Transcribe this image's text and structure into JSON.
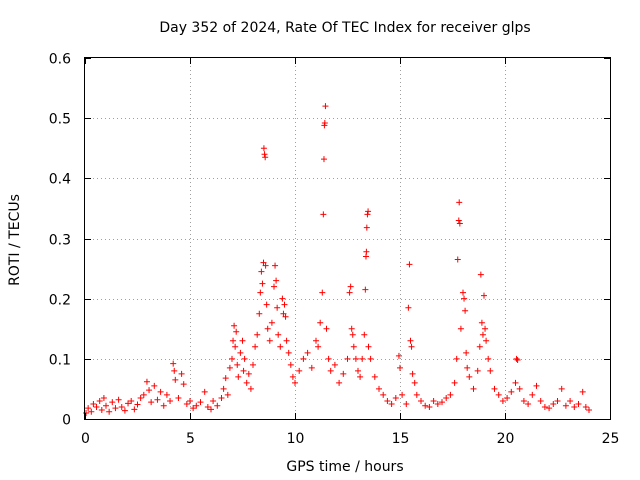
{
  "chart_data": {
    "type": "scatter",
    "title": "Day 352 of 2024, Rate Of TEC Index for receiver glps",
    "xlabel": "GPS time / hours",
    "ylabel": "ROTI / TECUs",
    "xlim": [
      0,
      25
    ],
    "ylim": [
      0,
      0.6
    ],
    "xticks": [
      0,
      5,
      10,
      15,
      20,
      25
    ],
    "yticks": [
      0,
      0.1,
      0.2,
      0.3,
      0.4,
      0.5,
      0.6
    ],
    "grid": true,
    "marker": "+",
    "color": "#ff0000",
    "series": [
      {
        "name": "ROTI",
        "points": [
          [
            0.05,
            0.01
          ],
          [
            0.15,
            0.018
          ],
          [
            0.3,
            0.012
          ],
          [
            0.4,
            0.025
          ],
          [
            0.55,
            0.02
          ],
          [
            0.7,
            0.03
          ],
          [
            0.8,
            0.015
          ],
          [
            0.9,
            0.035
          ],
          [
            1.0,
            0.022
          ],
          [
            1.15,
            0.012
          ],
          [
            1.3,
            0.028
          ],
          [
            1.45,
            0.018
          ],
          [
            1.6,
            0.032
          ],
          [
            1.75,
            0.02
          ],
          [
            1.9,
            0.014
          ],
          [
            2.05,
            0.026
          ],
          [
            2.2,
            0.03
          ],
          [
            2.35,
            0.016
          ],
          [
            2.5,
            0.024
          ],
          [
            2.65,
            0.035
          ],
          [
            2.8,
            0.04
          ],
          [
            2.95,
            0.062
          ],
          [
            3.05,
            0.048
          ],
          [
            3.15,
            0.028
          ],
          [
            3.3,
            0.055
          ],
          [
            3.45,
            0.032
          ],
          [
            3.6,
            0.045
          ],
          [
            3.75,
            0.022
          ],
          [
            3.9,
            0.04
          ],
          [
            4.05,
            0.03
          ],
          [
            4.2,
            0.092
          ],
          [
            4.25,
            0.08
          ],
          [
            4.3,
            0.065
          ],
          [
            4.45,
            0.035
          ],
          [
            4.6,
            0.075
          ],
          [
            4.7,
            0.058
          ],
          [
            4.85,
            0.025
          ],
          [
            5.0,
            0.03
          ],
          [
            5.15,
            0.018
          ],
          [
            5.3,
            0.022
          ],
          [
            5.5,
            0.028
          ],
          [
            5.7,
            0.045
          ],
          [
            5.85,
            0.02
          ],
          [
            6.0,
            0.016
          ],
          [
            6.1,
            0.03
          ],
          [
            6.3,
            0.022
          ],
          [
            6.5,
            0.035
          ],
          [
            6.6,
            0.05
          ],
          [
            6.7,
            0.068
          ],
          [
            6.8,
            0.04
          ],
          [
            6.9,
            0.085
          ],
          [
            7.0,
            0.1
          ],
          [
            7.05,
            0.13
          ],
          [
            7.1,
            0.155
          ],
          [
            7.15,
            0.12
          ],
          [
            7.2,
            0.145
          ],
          [
            7.25,
            0.09
          ],
          [
            7.3,
            0.07
          ],
          [
            7.4,
            0.11
          ],
          [
            7.5,
            0.13
          ],
          [
            7.55,
            0.08
          ],
          [
            7.6,
            0.1
          ],
          [
            7.7,
            0.06
          ],
          [
            7.8,
            0.075
          ],
          [
            7.9,
            0.05
          ],
          [
            8.0,
            0.09
          ],
          [
            8.1,
            0.12
          ],
          [
            8.2,
            0.14
          ],
          [
            8.3,
            0.175
          ],
          [
            8.35,
            0.21
          ],
          [
            8.4,
            0.245
          ],
          [
            8.45,
            0.225
          ],
          [
            8.5,
            0.26
          ],
          [
            8.52,
            0.45
          ],
          [
            8.55,
            0.44
          ],
          [
            8.58,
            0.435
          ],
          [
            8.6,
            0.255
          ],
          [
            8.65,
            0.19
          ],
          [
            8.7,
            0.15
          ],
          [
            8.8,
            0.13
          ],
          [
            8.9,
            0.16
          ],
          [
            9.0,
            0.22
          ],
          [
            9.05,
            0.255
          ],
          [
            9.1,
            0.23
          ],
          [
            9.15,
            0.185
          ],
          [
            9.2,
            0.14
          ],
          [
            9.3,
            0.12
          ],
          [
            9.4,
            0.2
          ],
          [
            9.45,
            0.175
          ],
          [
            9.5,
            0.19
          ],
          [
            9.55,
            0.17
          ],
          [
            9.6,
            0.13
          ],
          [
            9.7,
            0.11
          ],
          [
            9.8,
            0.09
          ],
          [
            9.9,
            0.07
          ],
          [
            10.0,
            0.06
          ],
          [
            10.2,
            0.08
          ],
          [
            10.4,
            0.1
          ],
          [
            10.6,
            0.11
          ],
          [
            10.8,
            0.085
          ],
          [
            11.0,
            0.13
          ],
          [
            11.1,
            0.12
          ],
          [
            11.2,
            0.16
          ],
          [
            11.3,
            0.21
          ],
          [
            11.35,
            0.34
          ],
          [
            11.38,
            0.432
          ],
          [
            11.4,
            0.488
          ],
          [
            11.42,
            0.492
          ],
          [
            11.45,
            0.52
          ],
          [
            11.5,
            0.15
          ],
          [
            11.6,
            0.1
          ],
          [
            11.7,
            0.08
          ],
          [
            11.9,
            0.09
          ],
          [
            12.1,
            0.06
          ],
          [
            12.3,
            0.075
          ],
          [
            12.5,
            0.1
          ],
          [
            12.6,
            0.21
          ],
          [
            12.65,
            0.22
          ],
          [
            12.7,
            0.15
          ],
          [
            12.75,
            0.14
          ],
          [
            12.8,
            0.12
          ],
          [
            12.9,
            0.1
          ],
          [
            13.0,
            0.08
          ],
          [
            13.1,
            0.07
          ],
          [
            13.2,
            0.1
          ],
          [
            13.3,
            0.14
          ],
          [
            13.35,
            0.215
          ],
          [
            13.38,
            0.27
          ],
          [
            13.4,
            0.278
          ],
          [
            13.42,
            0.318
          ],
          [
            13.45,
            0.34
          ],
          [
            13.48,
            0.345
          ],
          [
            13.5,
            0.12
          ],
          [
            13.6,
            0.1
          ],
          [
            13.8,
            0.07
          ],
          [
            14.0,
            0.05
          ],
          [
            14.2,
            0.04
          ],
          [
            14.4,
            0.03
          ],
          [
            14.6,
            0.025
          ],
          [
            14.8,
            0.035
          ],
          [
            14.95,
            0.105
          ],
          [
            15.0,
            0.085
          ],
          [
            15.1,
            0.04
          ],
          [
            15.3,
            0.025
          ],
          [
            15.4,
            0.185
          ],
          [
            15.45,
            0.257
          ],
          [
            15.5,
            0.13
          ],
          [
            15.55,
            0.12
          ],
          [
            15.6,
            0.075
          ],
          [
            15.7,
            0.06
          ],
          [
            15.8,
            0.04
          ],
          [
            16.0,
            0.03
          ],
          [
            16.2,
            0.022
          ],
          [
            16.4,
            0.02
          ],
          [
            16.6,
            0.03
          ],
          [
            16.8,
            0.025
          ],
          [
            17.0,
            0.028
          ],
          [
            17.2,
            0.035
          ],
          [
            17.4,
            0.04
          ],
          [
            17.6,
            0.06
          ],
          [
            17.7,
            0.1
          ],
          [
            17.75,
            0.265
          ],
          [
            17.8,
            0.33
          ],
          [
            17.82,
            0.36
          ],
          [
            17.85,
            0.325
          ],
          [
            17.9,
            0.15
          ],
          [
            18.0,
            0.21
          ],
          [
            18.05,
            0.2
          ],
          [
            18.1,
            0.18
          ],
          [
            18.15,
            0.11
          ],
          [
            18.2,
            0.085
          ],
          [
            18.3,
            0.07
          ],
          [
            18.5,
            0.05
          ],
          [
            18.7,
            0.08
          ],
          [
            18.8,
            0.12
          ],
          [
            18.85,
            0.24
          ],
          [
            18.9,
            0.16
          ],
          [
            18.95,
            0.14
          ],
          [
            19.0,
            0.205
          ],
          [
            19.05,
            0.15
          ],
          [
            19.1,
            0.13
          ],
          [
            19.2,
            0.1
          ],
          [
            19.3,
            0.08
          ],
          [
            19.5,
            0.05
          ],
          [
            19.7,
            0.04
          ],
          [
            19.9,
            0.03
          ],
          [
            20.1,
            0.035
          ],
          [
            20.3,
            0.045
          ],
          [
            20.5,
            0.06
          ],
          [
            20.55,
            0.1
          ],
          [
            20.6,
            0.098
          ],
          [
            20.7,
            0.05
          ],
          [
            20.9,
            0.03
          ],
          [
            21.1,
            0.025
          ],
          [
            21.3,
            0.04
          ],
          [
            21.5,
            0.055
          ],
          [
            21.7,
            0.03
          ],
          [
            21.9,
            0.02
          ],
          [
            22.1,
            0.018
          ],
          [
            22.3,
            0.025
          ],
          [
            22.5,
            0.03
          ],
          [
            22.7,
            0.05
          ],
          [
            22.9,
            0.022
          ],
          [
            23.1,
            0.03
          ],
          [
            23.3,
            0.02
          ],
          [
            23.5,
            0.025
          ],
          [
            23.7,
            0.045
          ],
          [
            23.85,
            0.02
          ],
          [
            24.0,
            0.015
          ]
        ]
      }
    ]
  }
}
